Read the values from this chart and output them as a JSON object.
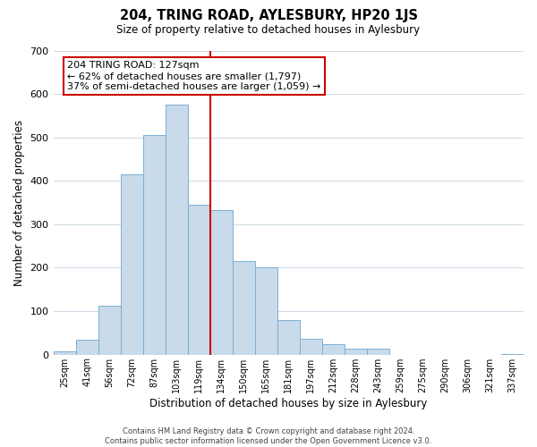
{
  "title": "204, TRING ROAD, AYLESBURY, HP20 1JS",
  "subtitle": "Size of property relative to detached houses in Aylesbury",
  "xlabel": "Distribution of detached houses by size in Aylesbury",
  "ylabel": "Number of detached properties",
  "bar_labels": [
    "25sqm",
    "41sqm",
    "56sqm",
    "72sqm",
    "87sqm",
    "103sqm",
    "119sqm",
    "134sqm",
    "150sqm",
    "165sqm",
    "181sqm",
    "197sqm",
    "212sqm",
    "228sqm",
    "243sqm",
    "259sqm",
    "275sqm",
    "290sqm",
    "306sqm",
    "321sqm",
    "337sqm"
  ],
  "bar_values": [
    8,
    35,
    113,
    415,
    505,
    575,
    345,
    333,
    215,
    200,
    80,
    37,
    25,
    13,
    13,
    0,
    0,
    0,
    0,
    0,
    2
  ],
  "bar_color": "#c9daea",
  "bar_edge_color": "#7bafd4",
  "background_color": "#ffffff",
  "grid_color": "#d0dce8",
  "annotation_text": "204 TRING ROAD: 127sqm\n← 62% of detached houses are smaller (1,797)\n37% of semi-detached houses are larger (1,059) →",
  "vline_x_index": 6.5,
  "vline_color": "#cc0000",
  "annotation_box_edge": "#cc0000",
  "ylim": [
    0,
    700
  ],
  "yticks": [
    0,
    100,
    200,
    300,
    400,
    500,
    600,
    700
  ],
  "footer_line1": "Contains HM Land Registry data © Crown copyright and database right 2024.",
  "footer_line2": "Contains public sector information licensed under the Open Government Licence v3.0."
}
